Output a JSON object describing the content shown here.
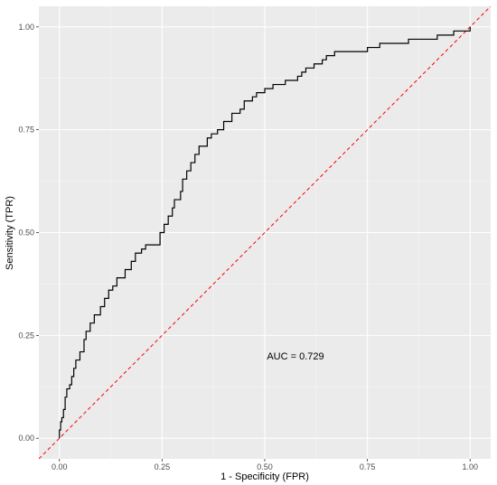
{
  "chart_data": {
    "type": "line",
    "xlabel": "1 - Specificity (FPR)",
    "ylabel": "Sensitivity (TPR)",
    "xlim": [
      -0.05,
      1.05
    ],
    "ylim": [
      -0.05,
      1.05
    ],
    "x_ticks": [
      "0.00",
      "0.25",
      "0.50",
      "0.75",
      "1.00"
    ],
    "y_ticks": [
      "0.00",
      "0.25",
      "0.50",
      "0.75",
      "1.00"
    ],
    "grid": true,
    "annotation": {
      "text": "AUC = 0.729",
      "x": 0.5,
      "y": 0.2
    },
    "colors": {
      "panel": "#ebebeb",
      "grid_major": "#ffffff",
      "curve": "#000000",
      "reference": "#ff0000",
      "tick_text": "#4d4d4d"
    },
    "series": [
      {
        "style": "step",
        "points": [
          [
            0.0,
            0.0
          ],
          [
            0.0,
            0.02
          ],
          [
            0.003,
            0.04
          ],
          [
            0.006,
            0.05
          ],
          [
            0.01,
            0.07
          ],
          [
            0.014,
            0.1
          ],
          [
            0.018,
            0.12
          ],
          [
            0.025,
            0.13
          ],
          [
            0.03,
            0.15
          ],
          [
            0.035,
            0.17
          ],
          [
            0.04,
            0.19
          ],
          [
            0.05,
            0.21
          ],
          [
            0.06,
            0.24
          ],
          [
            0.065,
            0.26
          ],
          [
            0.075,
            0.28
          ],
          [
            0.085,
            0.3
          ],
          [
            0.1,
            0.32
          ],
          [
            0.11,
            0.34
          ],
          [
            0.12,
            0.36
          ],
          [
            0.13,
            0.37
          ],
          [
            0.14,
            0.39
          ],
          [
            0.16,
            0.41
          ],
          [
            0.175,
            0.43
          ],
          [
            0.185,
            0.45
          ],
          [
            0.2,
            0.46
          ],
          [
            0.21,
            0.47
          ],
          [
            0.24,
            0.47
          ],
          [
            0.245,
            0.5
          ],
          [
            0.255,
            0.52
          ],
          [
            0.265,
            0.54
          ],
          [
            0.275,
            0.56
          ],
          [
            0.28,
            0.58
          ],
          [
            0.295,
            0.6
          ],
          [
            0.3,
            0.63
          ],
          [
            0.31,
            0.65
          ],
          [
            0.32,
            0.67
          ],
          [
            0.33,
            0.69
          ],
          [
            0.34,
            0.71
          ],
          [
            0.36,
            0.73
          ],
          [
            0.37,
            0.74
          ],
          [
            0.385,
            0.75
          ],
          [
            0.4,
            0.77
          ],
          [
            0.42,
            0.79
          ],
          [
            0.44,
            0.8
          ],
          [
            0.45,
            0.82
          ],
          [
            0.47,
            0.83
          ],
          [
            0.48,
            0.84
          ],
          [
            0.5,
            0.85
          ],
          [
            0.52,
            0.86
          ],
          [
            0.55,
            0.87
          ],
          [
            0.58,
            0.88
          ],
          [
            0.59,
            0.89
          ],
          [
            0.6,
            0.9
          ],
          [
            0.62,
            0.91
          ],
          [
            0.64,
            0.92
          ],
          [
            0.65,
            0.93
          ],
          [
            0.67,
            0.94
          ],
          [
            0.72,
            0.94
          ],
          [
            0.75,
            0.95
          ],
          [
            0.78,
            0.96
          ],
          [
            0.85,
            0.97
          ],
          [
            0.92,
            0.98
          ],
          [
            0.96,
            0.99
          ],
          [
            1.0,
            1.0
          ]
        ]
      },
      {
        "style": "dashed",
        "points": [
          [
            -0.05,
            -0.05
          ],
          [
            1.05,
            1.05
          ]
        ]
      }
    ]
  }
}
